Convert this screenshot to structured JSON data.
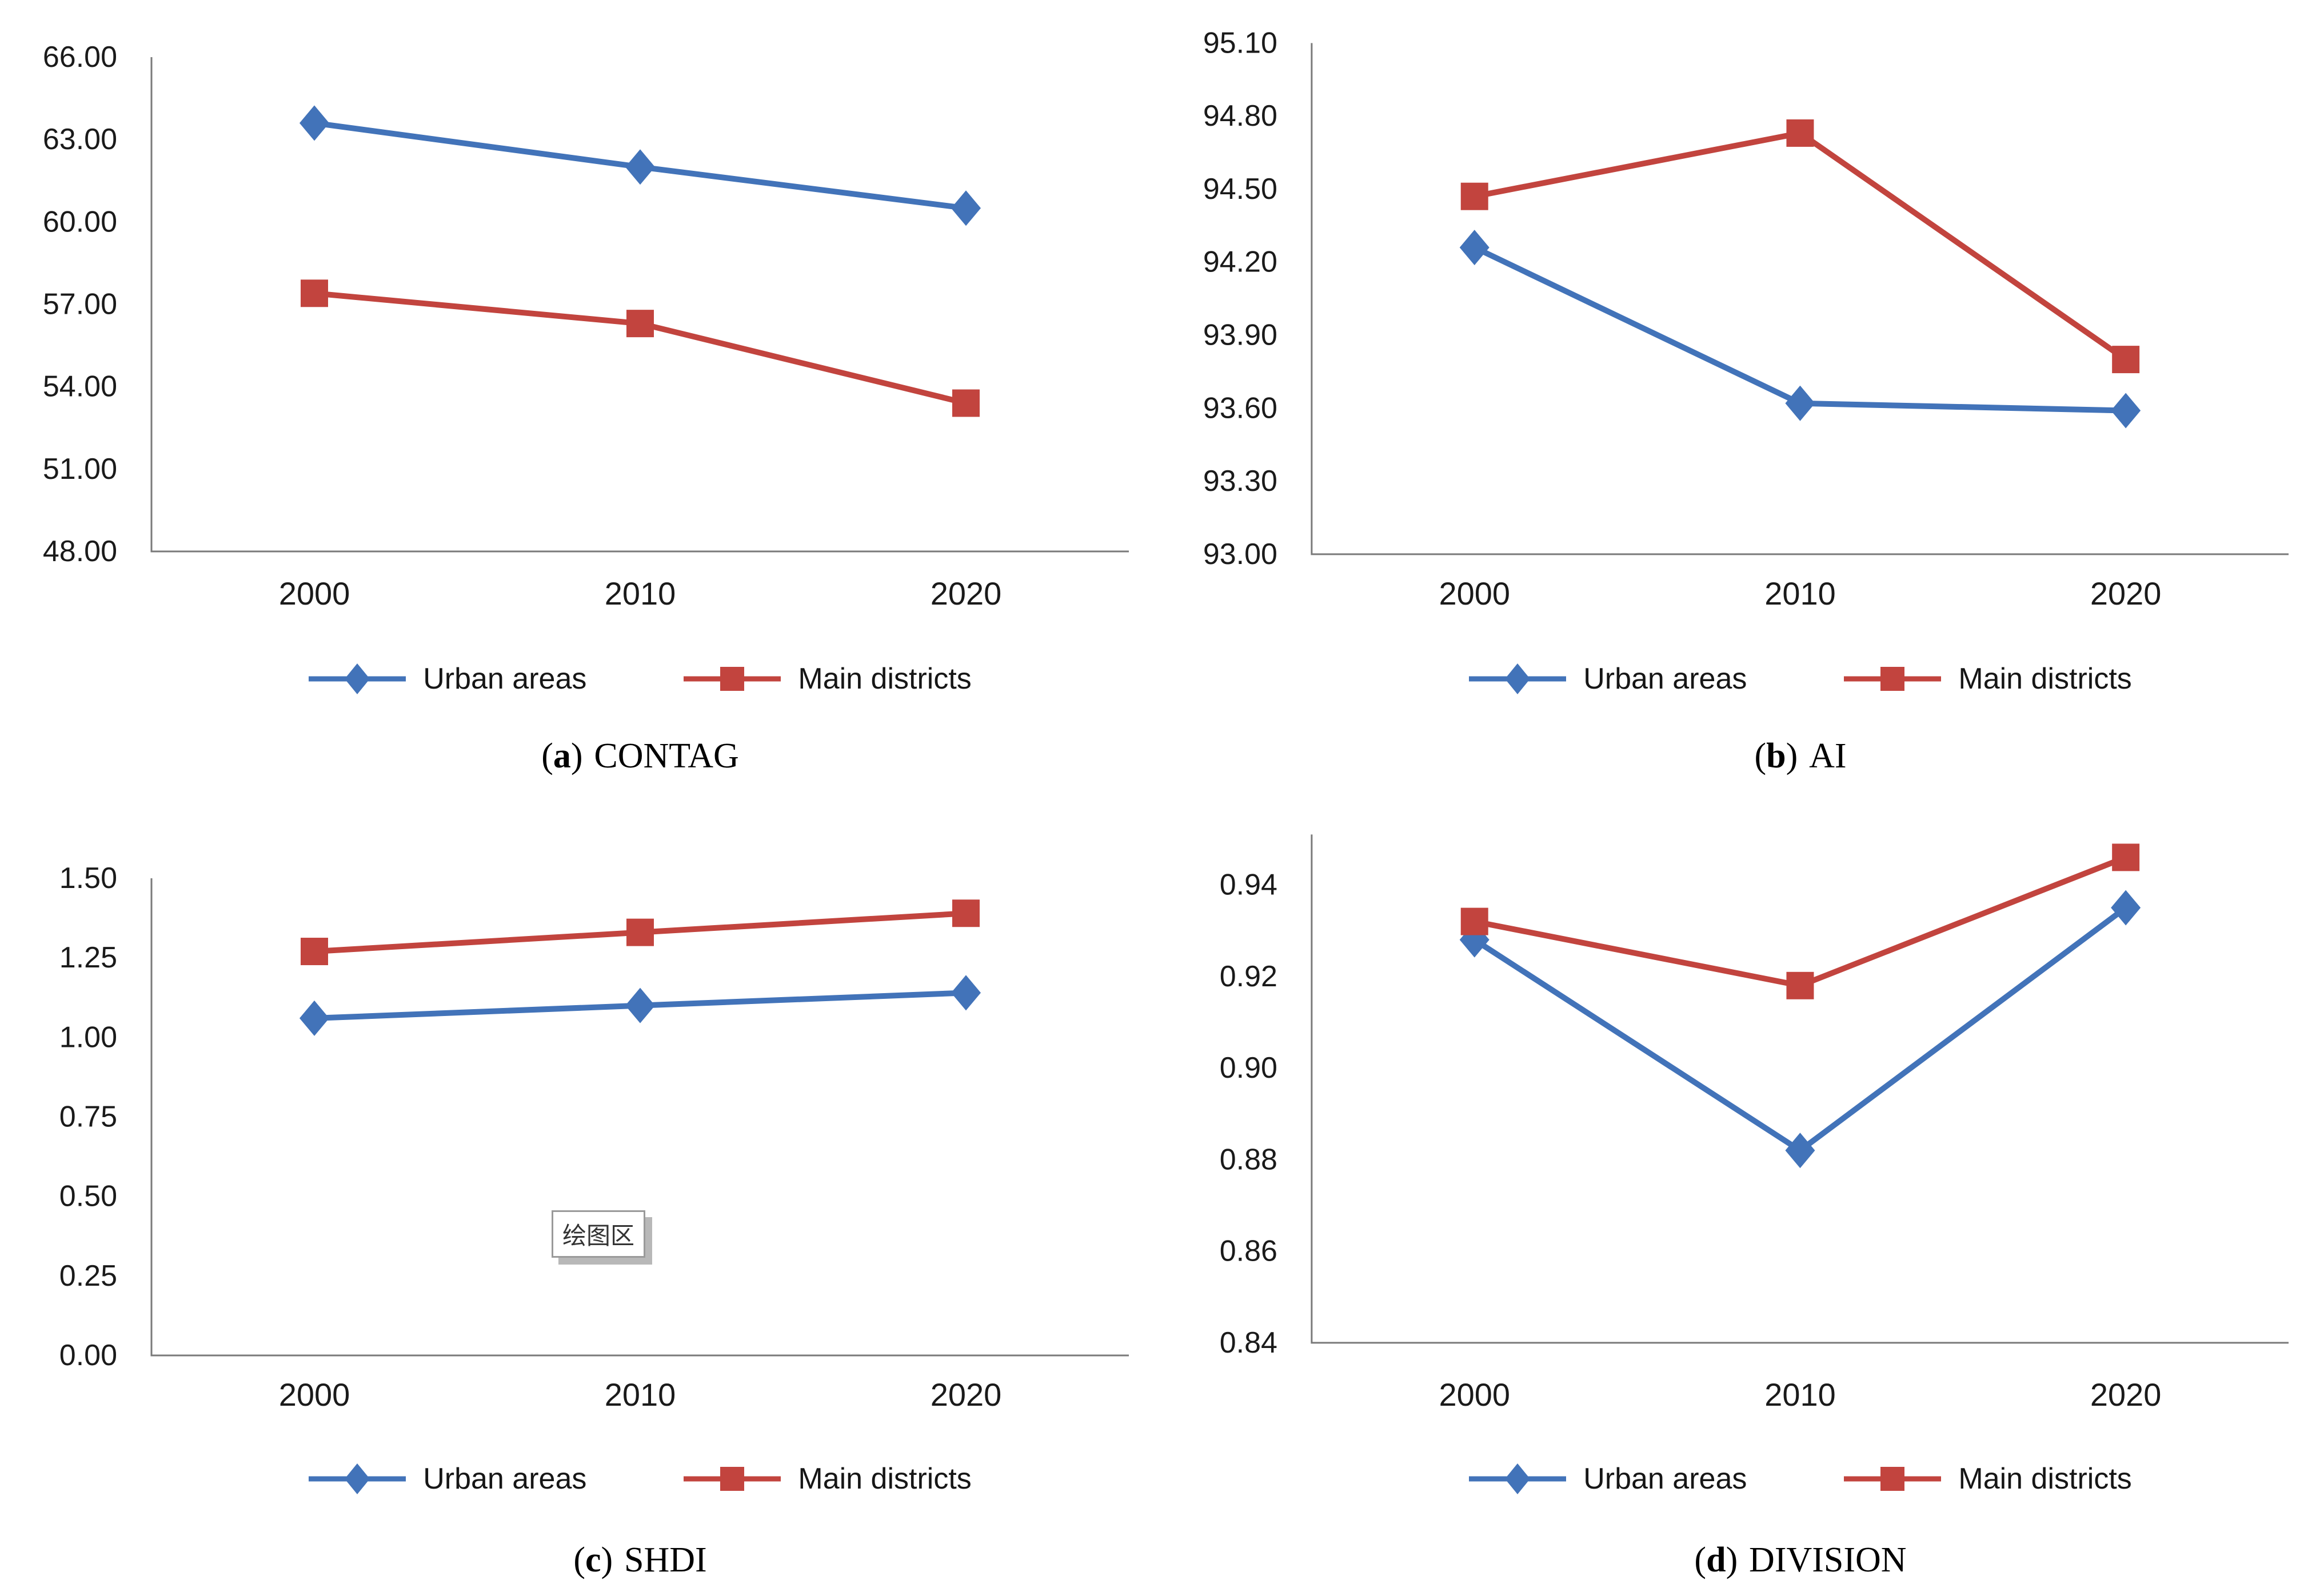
{
  "page_background": "#ffffff",
  "colors": {
    "urban_series": "#4273b9",
    "main_series": "#c2443e",
    "axis_line": "#7a7a7a",
    "tick_text": "#1a1a1a"
  },
  "tooltip": {
    "text": "绘图区"
  },
  "chart_data": [
    {
      "id": "a",
      "type": "line",
      "caption": {
        "prefix": "(",
        "letter": "a",
        "suffix": ")",
        "title": "CONTAG"
      },
      "categories": [
        "2000",
        "2010",
        "2020"
      ],
      "series": [
        {
          "name": "Urban areas",
          "marker": "diamond",
          "color": "#4273b9",
          "values": [
            63.6,
            62.0,
            60.5
          ]
        },
        {
          "name": "Main districts",
          "marker": "square",
          "color": "#c2443e",
          "values": [
            57.4,
            56.3,
            53.4
          ]
        }
      ],
      "ylim": [
        48.0,
        66.0
      ],
      "ytick_labels": [
        "66.00",
        "63.00",
        "60.00",
        "57.00",
        "54.00",
        "51.00",
        "48.00"
      ],
      "grid": false,
      "legend_position": "bottom"
    },
    {
      "id": "b",
      "type": "line",
      "caption": {
        "prefix": "(",
        "letter": "b",
        "suffix": ")",
        "title": "AI"
      },
      "categories": [
        "2000",
        "2010",
        "2020"
      ],
      "series": [
        {
          "name": "Urban areas",
          "marker": "diamond",
          "color": "#4273b9",
          "values": [
            94.26,
            93.62,
            93.59
          ]
        },
        {
          "name": "Main districts",
          "marker": "square",
          "color": "#c2443e",
          "values": [
            94.47,
            94.73,
            93.8
          ]
        }
      ],
      "ylim": [
        93.0,
        95.1
      ],
      "ytick_labels": [
        "95.10",
        "94.80",
        "94.50",
        "94.20",
        "93.90",
        "93.60",
        "93.30",
        "93.00"
      ],
      "grid": false,
      "legend_position": "bottom"
    },
    {
      "id": "c",
      "type": "line",
      "caption": {
        "prefix": "(",
        "letter": "c",
        "suffix": ")",
        "title": "SHDI"
      },
      "categories": [
        "2000",
        "2010",
        "2020"
      ],
      "series": [
        {
          "name": "Urban areas",
          "marker": "diamond",
          "color": "#4273b9",
          "values": [
            1.06,
            1.1,
            1.14
          ]
        },
        {
          "name": "Main districts",
          "marker": "square",
          "color": "#c2443e",
          "values": [
            1.27,
            1.33,
            1.39
          ]
        }
      ],
      "ylim": [
        0.0,
        1.5
      ],
      "ytick_labels": [
        "1.50",
        "1.25",
        "1.00",
        "0.75",
        "0.50",
        "0.25",
        "0.00"
      ],
      "grid": false,
      "legend_position": "bottom"
    },
    {
      "id": "d",
      "type": "line",
      "caption": {
        "prefix": "(",
        "letter": "d",
        "suffix": ")",
        "title": "DIVISION"
      },
      "categories": [
        "2000",
        "2010",
        "2020"
      ],
      "series": [
        {
          "name": "Urban areas",
          "marker": "diamond",
          "color": "#4273b9",
          "values": [
            0.928,
            0.882,
            0.935
          ]
        },
        {
          "name": "Main districts",
          "marker": "square",
          "color": "#c2443e",
          "values": [
            0.932,
            0.918,
            0.946
          ]
        }
      ],
      "ylim": [
        0.84,
        0.951
      ],
      "ytick_labels": [
        "0.94",
        "0.92",
        "0.90",
        "0.88",
        "0.86",
        "0.84"
      ],
      "grid": false,
      "legend_position": "bottom"
    }
  ]
}
